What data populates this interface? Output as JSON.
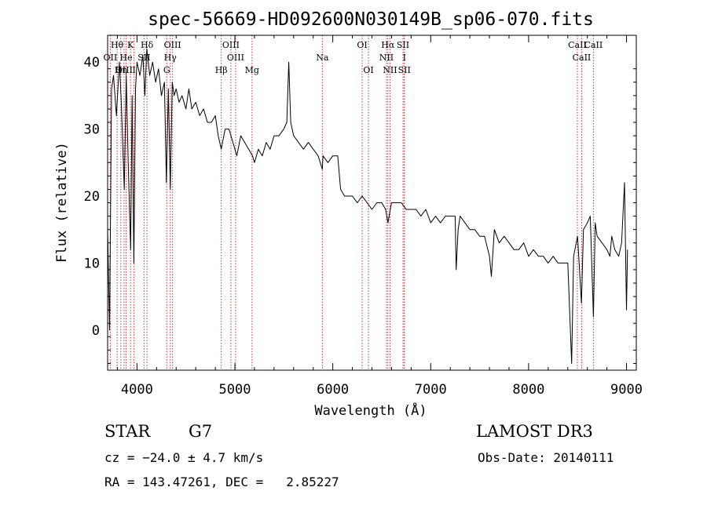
{
  "chart_data": {
    "type": "line",
    "title": "spec-56669-HD092600N030149B_sp06-070.fits",
    "xlabel": "Wavelength (Å)",
    "ylabel": "Flux (relative)",
    "xlim": [
      3700,
      9100
    ],
    "ylim": [
      -6,
      44
    ],
    "xticks": [
      4000,
      5000,
      6000,
      7000,
      8000,
      9000
    ],
    "yticks": [
      0,
      10,
      20,
      30,
      40
    ],
    "series": [
      {
        "name": "flux",
        "points": [
          [
            3700,
            15
          ],
          [
            3720,
            0
          ],
          [
            3740,
            36
          ],
          [
            3760,
            38
          ],
          [
            3790,
            32
          ],
          [
            3820,
            40
          ],
          [
            3840,
            34
          ],
          [
            3870,
            21
          ],
          [
            3890,
            38
          ],
          [
            3910,
            25
          ],
          [
            3935,
            12
          ],
          [
            3950,
            35
          ],
          [
            3968,
            10
          ],
          [
            3985,
            36
          ],
          [
            4000,
            40
          ],
          [
            4030,
            38
          ],
          [
            4060,
            41
          ],
          [
            4080,
            35
          ],
          [
            4100,
            42
          ],
          [
            4130,
            38
          ],
          [
            4160,
            40
          ],
          [
            4190,
            37
          ],
          [
            4220,
            39
          ],
          [
            4250,
            35
          ],
          [
            4280,
            37
          ],
          [
            4300,
            22
          ],
          [
            4320,
            36
          ],
          [
            4340,
            21
          ],
          [
            4360,
            37
          ],
          [
            4380,
            35
          ],
          [
            4400,
            36
          ],
          [
            4430,
            34
          ],
          [
            4460,
            35
          ],
          [
            4500,
            33
          ],
          [
            4530,
            36
          ],
          [
            4560,
            33
          ],
          [
            4600,
            34
          ],
          [
            4640,
            32
          ],
          [
            4680,
            33
          ],
          [
            4720,
            31
          ],
          [
            4760,
            31
          ],
          [
            4800,
            32
          ],
          [
            4830,
            29
          ],
          [
            4860,
            27
          ],
          [
            4900,
            30
          ],
          [
            4940,
            30
          ],
          [
            4980,
            28
          ],
          [
            5020,
            26
          ],
          [
            5060,
            29
          ],
          [
            5100,
            28
          ],
          [
            5140,
            27
          ],
          [
            5180,
            26
          ],
          [
            5200,
            25
          ],
          [
            5240,
            27
          ],
          [
            5280,
            26
          ],
          [
            5320,
            28
          ],
          [
            5360,
            27
          ],
          [
            5400,
            29
          ],
          [
            5450,
            29
          ],
          [
            5500,
            30
          ],
          [
            5530,
            31
          ],
          [
            5550,
            40
          ],
          [
            5570,
            31
          ],
          [
            5600,
            29
          ],
          [
            5650,
            28
          ],
          [
            5700,
            27
          ],
          [
            5750,
            28
          ],
          [
            5800,
            27
          ],
          [
            5850,
            26
          ],
          [
            5893,
            24
          ],
          [
            5900,
            26
          ],
          [
            5950,
            25
          ],
          [
            6000,
            26
          ],
          [
            6050,
            26
          ],
          [
            6080,
            21
          ],
          [
            6120,
            20
          ],
          [
            6160,
            20
          ],
          [
            6200,
            20
          ],
          [
            6250,
            19
          ],
          [
            6300,
            20
          ],
          [
            6350,
            19
          ],
          [
            6400,
            18
          ],
          [
            6450,
            19
          ],
          [
            6500,
            19
          ],
          [
            6540,
            18
          ],
          [
            6563,
            16
          ],
          [
            6600,
            19
          ],
          [
            6650,
            19
          ],
          [
            6700,
            19
          ],
          [
            6750,
            18
          ],
          [
            6800,
            18
          ],
          [
            6850,
            18
          ],
          [
            6900,
            17
          ],
          [
            6950,
            18
          ],
          [
            7000,
            16
          ],
          [
            7050,
            17
          ],
          [
            7100,
            16
          ],
          [
            7150,
            17
          ],
          [
            7200,
            17
          ],
          [
            7250,
            17
          ],
          [
            7260,
            9
          ],
          [
            7280,
            15
          ],
          [
            7300,
            17
          ],
          [
            7350,
            16
          ],
          [
            7400,
            15
          ],
          [
            7450,
            15
          ],
          [
            7500,
            14
          ],
          [
            7550,
            14
          ],
          [
            7600,
            11
          ],
          [
            7620,
            8
          ],
          [
            7650,
            15
          ],
          [
            7700,
            13
          ],
          [
            7750,
            14
          ],
          [
            7800,
            13
          ],
          [
            7850,
            12
          ],
          [
            7900,
            12
          ],
          [
            7950,
            13
          ],
          [
            8000,
            11
          ],
          [
            8050,
            12
          ],
          [
            8100,
            11
          ],
          [
            8150,
            11
          ],
          [
            8200,
            10
          ],
          [
            8250,
            11
          ],
          [
            8300,
            10
          ],
          [
            8350,
            10
          ],
          [
            8400,
            10
          ],
          [
            8440,
            -5
          ],
          [
            8460,
            11
          ],
          [
            8500,
            14
          ],
          [
            8540,
            4
          ],
          [
            8560,
            15
          ],
          [
            8600,
            16
          ],
          [
            8630,
            17
          ],
          [
            8662,
            2
          ],
          [
            8680,
            16
          ],
          [
            8700,
            14
          ],
          [
            8750,
            13
          ],
          [
            8800,
            12
          ],
          [
            8830,
            11
          ],
          [
            8850,
            14
          ],
          [
            8880,
            12
          ],
          [
            8920,
            11
          ],
          [
            8950,
            13
          ],
          [
            8980,
            22
          ],
          [
            9000,
            3
          ],
          [
            9010,
            12
          ]
        ]
      }
    ],
    "line_markers": [
      {
        "label": "Hθ",
        "x": 3797
      },
      {
        "label": "K",
        "x": 3934
      },
      {
        "label": "Hδ",
        "x": 4102
      },
      {
        "label": "OIII",
        "x": 4363
      },
      {
        "label": "OIII",
        "x": 4959
      },
      {
        "label": "OI",
        "x": 6300
      },
      {
        "label": "Hα",
        "x": 6563
      },
      {
        "label": "SII",
        "x": 6717
      },
      {
        "label": "CaII",
        "x": 8498
      },
      {
        "label": "OII",
        "x": 3727
      },
      {
        "label": "He",
        "x": 3889
      },
      {
        "label": "SII",
        "x": 4072
      },
      {
        "label": "Hγ",
        "x": 4340
      },
      {
        "label": "OIII",
        "x": 5007
      },
      {
        "label": "Na",
        "x": 5893
      },
      {
        "label": "NII",
        "x": 6548
      },
      {
        "label": "I",
        "x": 6731
      },
      {
        "label": "CaII",
        "x": 8542
      },
      {
        "label": "OIII",
        "x": 3868
      },
      {
        "label": "Hη",
        "x": 3835
      },
      {
        "label": "I",
        "x": 3970
      },
      {
        "label": "G",
        "x": 4304
      },
      {
        "label": "Hβ",
        "x": 4861
      },
      {
        "label": "Mg",
        "x": 5175
      },
      {
        "label": "OI",
        "x": 6364
      },
      {
        "label": "NII",
        "x": 6584
      },
      {
        "label": "SII",
        "x": 6731
      },
      {
        "label": "CaII",
        "x": 8662
      }
    ],
    "colors": {
      "series": "#000000",
      "markers": "#cc3333"
    }
  },
  "info": {
    "object_class": "STAR",
    "subclass": "G7",
    "survey": "LAMOST DR3",
    "redshift": "cz = −24.0 ± 4.7 km/s",
    "obs_date": "Obs-Date: 20140111",
    "coords": "RA = 143.47261, DEC =   2.85227"
  }
}
